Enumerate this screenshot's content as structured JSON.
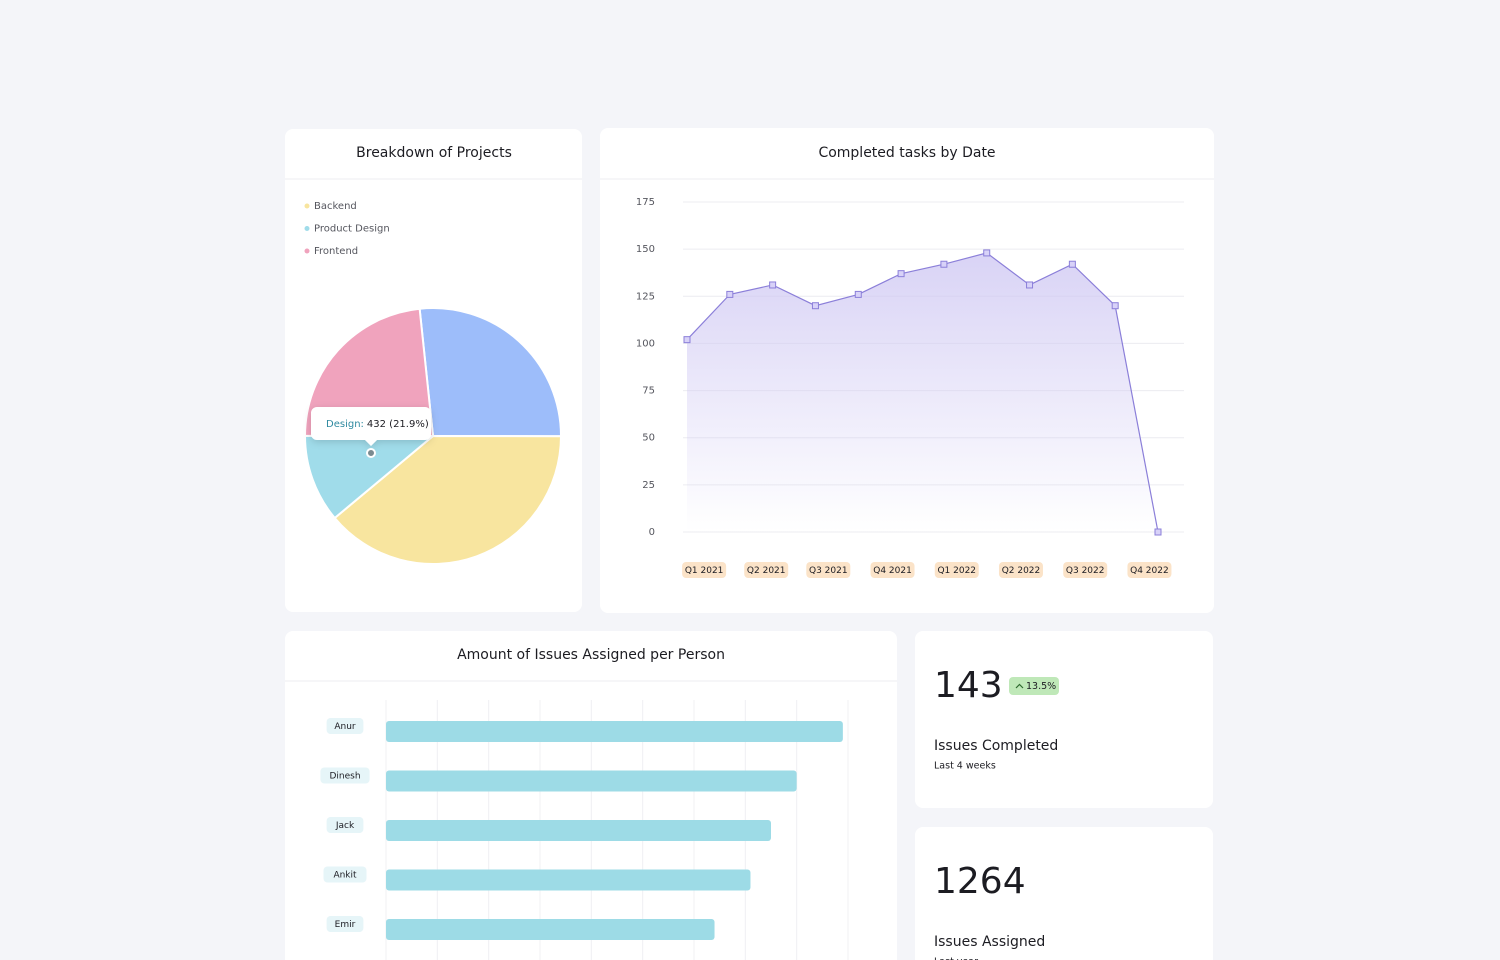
{
  "chart_data": [
    {
      "type": "pie",
      "title": "Breakdown of Projects",
      "categories": [
        null,
        "Backend",
        "Product Design",
        "Frontend"
      ],
      "values": [
        26.7,
        38.9,
        11.1,
        23.3
      ],
      "colors": [
        "#9dbdfa",
        "#f8e59f",
        "#a0dcea",
        "#f0a3bd"
      ],
      "tooltip": {
        "label": "Design:",
        "value": "432 (21.9%)"
      }
    },
    {
      "type": "line",
      "title": "Completed tasks by Date",
      "x": [
        0,
        1,
        2,
        3,
        4,
        5,
        6,
        7,
        8,
        9,
        10,
        11
      ],
      "values": [
        102,
        126,
        131,
        120,
        126,
        137,
        142,
        148,
        131,
        142,
        120,
        0
      ],
      "color": "#8b7fd9",
      "xlim": [
        0,
        11
      ],
      "xticks": [
        {
          "value": 0.4,
          "label": "Q1 2021"
        },
        {
          "value": 1.85,
          "label": "Q2 2021"
        },
        {
          "value": 3.3,
          "label": "Q3 2021"
        },
        {
          "value": 4.8,
          "label": "Q4 2021"
        },
        {
          "value": 6.3,
          "label": "Q1 2022"
        },
        {
          "value": 7.8,
          "label": "Q2 2022"
        },
        {
          "value": 9.3,
          "label": "Q3 2022"
        },
        {
          "value": 10.8,
          "label": "Q4 2022"
        }
      ],
      "ylim": [
        0,
        175
      ],
      "yticks": [
        0,
        25,
        50,
        75,
        100,
        125,
        150,
        175
      ],
      "grid": true
    },
    {
      "type": "hbar",
      "title": "Amount of Issues Assigned per Person",
      "categories": [
        "Anur",
        "Dinesh",
        "Jack",
        "Ankit",
        "Emir"
      ],
      "values": [
        8.9,
        8.0,
        7.5,
        7.1,
        6.4
      ],
      "color": "#9ddbe6",
      "xlim": [
        0,
        9
      ],
      "grid": true
    }
  ],
  "cards": [
    {
      "value": "143",
      "badge": "13.5%",
      "label": "Issues Completed",
      "sub": "Last 4 weeks"
    },
    {
      "value": "1264",
      "label": "Issues Assigned",
      "sub": "Last year"
    }
  ]
}
